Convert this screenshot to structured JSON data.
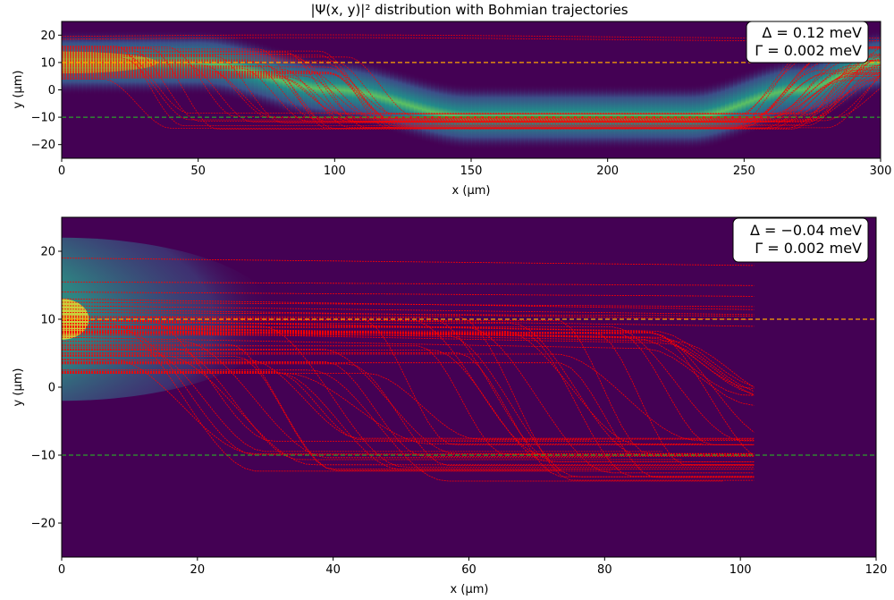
{
  "chart_data": [
    {
      "type": "heatmap",
      "title": "|Ψ(x, y)|² distribution with Bohmian trajectories",
      "xlabel": "x (μm)",
      "ylabel": "y (μm)",
      "xlim": [
        0,
        300
      ],
      "ylim": [
        -25,
        25
      ],
      "xticks": [
        "0",
        "50",
        "100",
        "150",
        "200",
        "250",
        "300"
      ],
      "yticks": [
        "−20",
        "−10",
        "0",
        "10",
        "20"
      ],
      "annotation_lines": [
        "Δ = 0.12 meV",
        "Γ = 0.002 meV"
      ],
      "annotation_placement": "top-right",
      "guide_lines": [
        {
          "y": 10,
          "color": "#ffa500",
          "style": "dashed"
        },
        {
          "y": -10,
          "color": "#2ca02c",
          "style": "dashed"
        }
      ],
      "density_path": {
        "x": [
          0,
          50,
          100,
          150,
          190,
          230,
          270,
          300
        ],
        "y": [
          10,
          10,
          0,
          -10,
          -10,
          -10,
          0,
          10
        ]
      },
      "trajectory_color": "#ff0000",
      "colormap": "viridis"
    },
    {
      "type": "heatmap",
      "title": "",
      "xlabel": "x (μm)",
      "ylabel": "y (μm)",
      "xlim": [
        0,
        120
      ],
      "ylim": [
        -25,
        25
      ],
      "xticks": [
        "0",
        "20",
        "40",
        "60",
        "80",
        "100",
        "120"
      ],
      "yticks": [
        "−20",
        "−10",
        "0",
        "10",
        "20"
      ],
      "annotation_lines": [
        "Δ = −0.04 meV",
        "Γ = 0.002 meV"
      ],
      "annotation_placement": "top-right",
      "guide_lines": [
        {
          "y": 10,
          "color": "#ffa500",
          "style": "dashed"
        },
        {
          "y": -10,
          "color": "#2ca02c",
          "style": "dashed"
        }
      ],
      "trajectory_end_x": 103,
      "trajectory_color": "#ff0000",
      "colormap": "viridis"
    }
  ]
}
